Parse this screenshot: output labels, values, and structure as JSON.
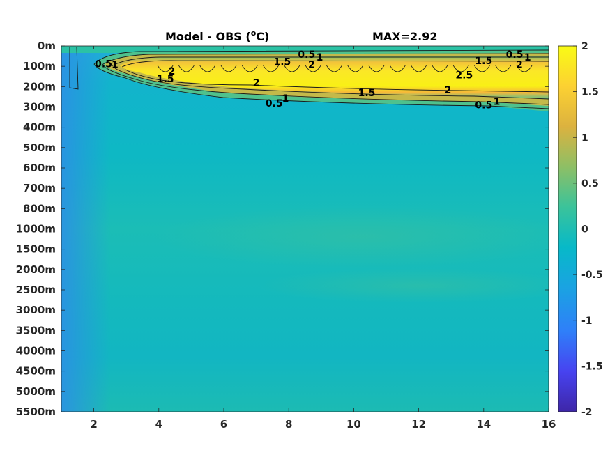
{
  "chart_data": {
    "type": "heatmap",
    "title": "Model - OBS (",
    "title_sup": "o",
    "title_unit": "C)",
    "annotation": "MAX=2.92",
    "x_ticks": [
      "2",
      "4",
      "6",
      "8",
      "10",
      "12",
      "14",
      "16"
    ],
    "x_tick_values": [
      2,
      4,
      6,
      8,
      10,
      12,
      14,
      16
    ],
    "xlim": [
      1,
      16
    ],
    "y_ticks": [
      "0m",
      "100m",
      "200m",
      "300m",
      "400m",
      "500m",
      "600m",
      "700m",
      "800m",
      "1000m",
      "1500m",
      "2000m",
      "2500m",
      "3000m",
      "3500m",
      "4000m",
      "4500m",
      "5000m",
      "5500m"
    ],
    "colorbar": {
      "ticks": [
        "2",
        "1.5",
        "1",
        "0.5",
        "0",
        "-0.5",
        "-1",
        "-1.5",
        "-2"
      ],
      "range": [
        -2,
        2
      ],
      "colormap": "parula",
      "colors": [
        "#3e26a8",
        "#4743f0",
        "#2f7ff9",
        "#1aa3e2",
        "#07b9c8",
        "#3bc39a",
        "#8ebf65",
        "#dcb23f",
        "#fcd132",
        "#f9fb15"
      ]
    },
    "contour_levels": [
      0.5,
      1,
      1.5,
      2,
      2.5
    ],
    "contour_labels": [
      {
        "text": "0.5",
        "x": 2.3,
        "y_level": 0.75
      },
      {
        "text": "1",
        "x": 2.65,
        "y_level": 0.8
      },
      {
        "text": "2",
        "x": 4.4,
        "y_level": 1.15
      },
      {
        "text": "1.5",
        "x": 4.2,
        "y_level": 1.55
      },
      {
        "text": "2",
        "x": 7.0,
        "y_level": 1.75
      },
      {
        "text": "1.5",
        "x": 7.8,
        "y_level": 0.65
      },
      {
        "text": "0.5",
        "x": 8.55,
        "y_level": 0.25
      },
      {
        "text": "1",
        "x": 8.95,
        "y_level": 0.4
      },
      {
        "text": "2",
        "x": 8.7,
        "y_level": 0.8
      },
      {
        "text": "1.5",
        "x": 10.4,
        "y_level": 2.3
      },
      {
        "text": "1",
        "x": 7.9,
        "y_level": 2.6
      },
      {
        "text": "0.5",
        "x": 7.55,
        "y_level": 2.85
      },
      {
        "text": "2.5",
        "x": 13.4,
        "y_level": 1.35
      },
      {
        "text": "2",
        "x": 12.9,
        "y_level": 2.15
      },
      {
        "text": "1.5",
        "x": 14.0,
        "y_level": 0.6
      },
      {
        "text": "0.5",
        "x": 14.95,
        "y_level": 0.25
      },
      {
        "text": "1",
        "x": 15.35,
        "y_level": 0.4
      },
      {
        "text": "2",
        "x": 15.1,
        "y_level": 0.8
      },
      {
        "text": "1",
        "x": 14.4,
        "y_level": 2.75
      },
      {
        "text": "0.5",
        "x": 14.0,
        "y_level": 2.95
      }
    ],
    "grid": false,
    "legend": "colorbar-right"
  }
}
